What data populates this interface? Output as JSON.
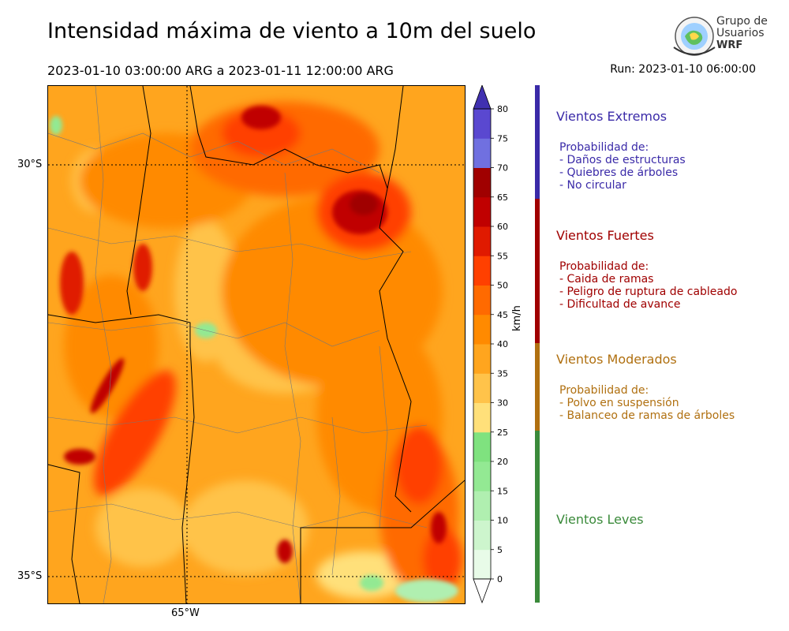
{
  "header": {
    "title": "Intensidad máxima de viento a 10m del suelo",
    "period": "2023-01-10 03:00:00 ARG  a  2023-01-11 12:00:00 ARG",
    "run": "Run: 2023-01-10 06:00:00"
  },
  "logo": {
    "line1": "Grupo de",
    "line2": "Usuarios",
    "line3": "WRF"
  },
  "map": {
    "lat_labels": [
      "30°S",
      "35°S"
    ],
    "lon_labels": [
      "65°W"
    ]
  },
  "colorbar": {
    "unit": "km/h",
    "ticks": [
      0,
      5,
      10,
      15,
      20,
      25,
      30,
      35,
      40,
      45,
      50,
      55,
      60,
      65,
      70,
      75,
      80
    ],
    "colors": [
      "#e8fbe8",
      "#cdf5cd",
      "#b0efb0",
      "#93e993",
      "#7fe27f",
      "#ffe07a",
      "#ffc34a",
      "#ffa51e",
      "#ff8a00",
      "#ff6a00",
      "#ff4000",
      "#e01a00",
      "#c00000",
      "#a00000",
      "#7070e0",
      "#5a48d0",
      "#4030b0"
    ]
  },
  "categories": [
    {
      "title": "Vientos Extremos",
      "color": "#3a2aa8",
      "lines": [
        "Probabilidad de:",
        "- Daños de estructuras",
        "- Quiebres de árboles",
        "- No circular"
      ]
    },
    {
      "title": "Vientos Fuertes",
      "color": "#a00000",
      "lines": [
        "Probabilidad de:",
        "- Caida de ramas",
        "- Peligro de ruptura de cableado",
        "- Dificultad de avance"
      ]
    },
    {
      "title": "Vientos Moderados",
      "color": "#b07010",
      "lines": [
        "Probabilidad de:",
        "- Polvo en suspensión",
        "- Balanceo de ramas de árboles"
      ]
    },
    {
      "title": "Vientos Leves",
      "color": "#3a8a3a",
      "lines": []
    }
  ]
}
